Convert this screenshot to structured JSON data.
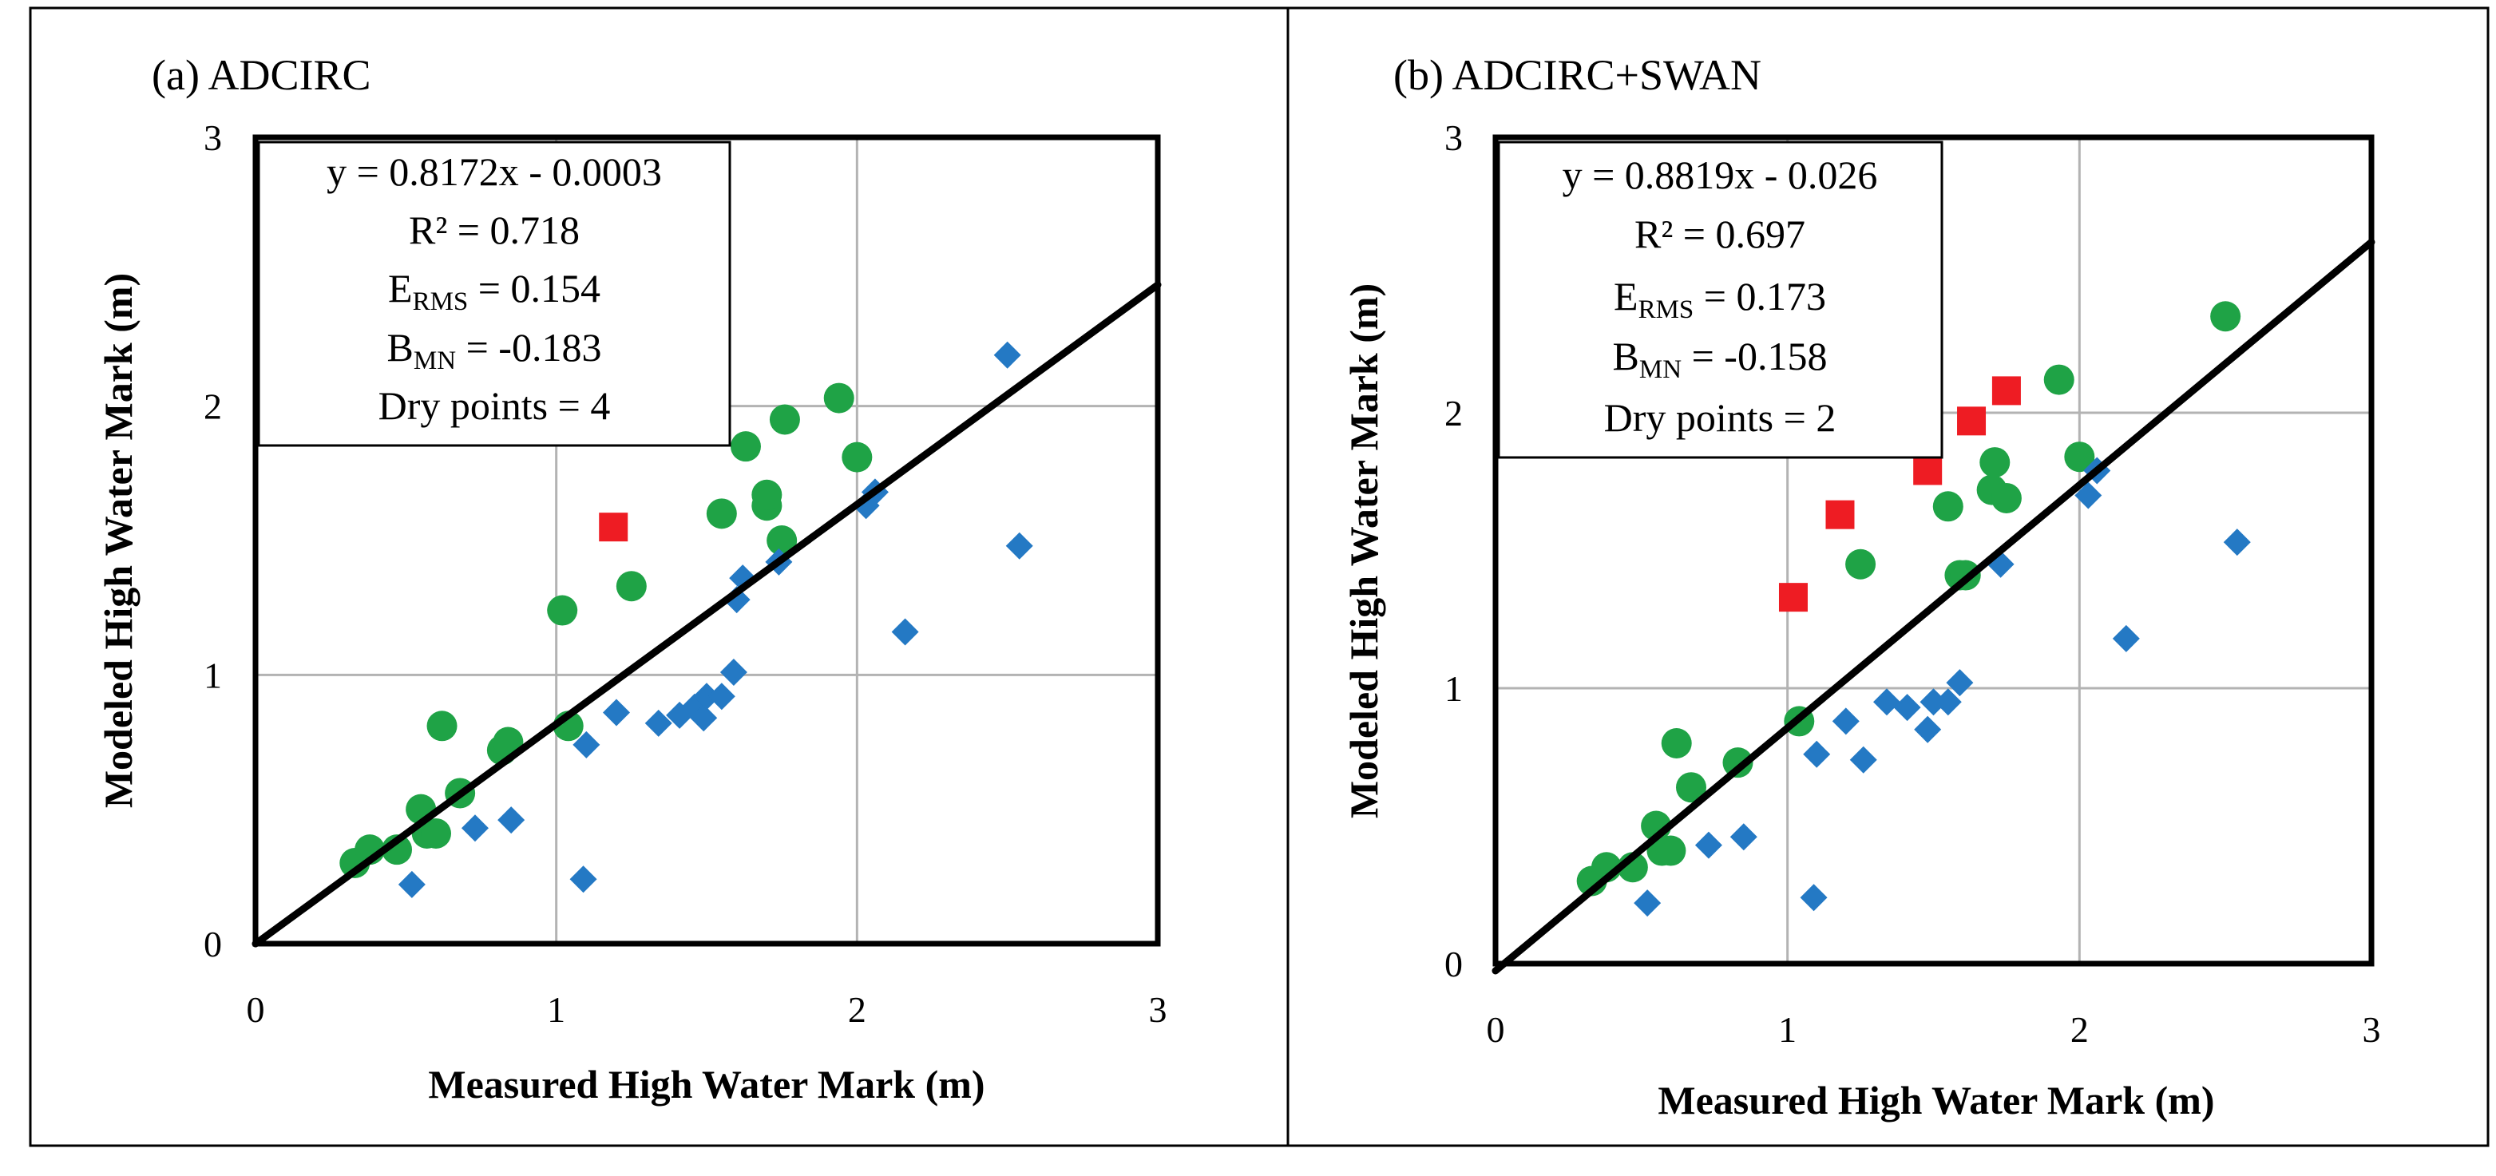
{
  "chart_data": [
    {
      "type": "scatter",
      "panel_label": "(a) ADCIRC",
      "xlabel": "Measured High Water Mark (m)",
      "ylabel": "Modeled High Water Mark (m)",
      "xlim": [
        0,
        3
      ],
      "ylim": [
        0,
        3
      ],
      "xticks": [
        "0",
        "1",
        "2",
        "3"
      ],
      "yticks": [
        "0",
        "1",
        "2",
        "3"
      ],
      "grid": true,
      "fit_line": {
        "slope": 0.8172,
        "intercept": -0.0003
      },
      "stats": {
        "equation": "y = 0.8172x - 0.0003",
        "r2": "R² =  0.718",
        "erms_main": "E",
        "erms_sub": "RMS",
        "erms_value": " = 0.154",
        "bmn_main": "B",
        "bmn_sub": "MN",
        "bmn_value": " = -0.183",
        "dry": "Dry points = 4"
      },
      "series": [
        {
          "name": "green circles",
          "marker": "circle",
          "color": "#1fa346",
          "points": [
            [
              0.33,
              0.3
            ],
            [
              0.38,
              0.35
            ],
            [
              0.47,
              0.35
            ],
            [
              0.55,
              0.5
            ],
            [
              0.57,
              0.41
            ],
            [
              0.6,
              0.41
            ],
            [
              0.62,
              0.81
            ],
            [
              0.68,
              0.56
            ],
            [
              0.82,
              0.72
            ],
            [
              0.84,
              0.75
            ],
            [
              1.02,
              1.24
            ],
            [
              1.04,
              0.81
            ],
            [
              1.25,
              1.33
            ],
            [
              1.55,
              1.6
            ],
            [
              1.63,
              1.85
            ],
            [
              1.7,
              1.63
            ],
            [
              1.7,
              1.67
            ],
            [
              1.75,
              1.5
            ],
            [
              1.76,
              1.95
            ],
            [
              1.94,
              2.03
            ],
            [
              2.0,
              1.81
            ]
          ]
        },
        {
          "name": "blue diamonds",
          "marker": "diamond",
          "color": "#2479c4",
          "points": [
            [
              0.52,
              0.22
            ],
            [
              0.73,
              0.43
            ],
            [
              0.85,
              0.46
            ],
            [
              1.09,
              0.24
            ],
            [
              1.1,
              0.74
            ],
            [
              1.2,
              0.86
            ],
            [
              1.34,
              0.82
            ],
            [
              1.41,
              0.85
            ],
            [
              1.46,
              0.88
            ],
            [
              1.49,
              0.84
            ],
            [
              1.5,
              0.92
            ],
            [
              1.55,
              0.92
            ],
            [
              1.59,
              1.01
            ],
            [
              1.6,
              1.28
            ],
            [
              1.62,
              1.36
            ],
            [
              1.74,
              1.42
            ],
            [
              2.03,
              1.63
            ],
            [
              2.06,
              1.68
            ],
            [
              2.16,
              1.16
            ],
            [
              2.5,
              2.19
            ],
            [
              2.54,
              1.48
            ]
          ]
        },
        {
          "name": "red squares",
          "marker": "square",
          "color": "#ee1c23",
          "points": [
            [
              1.19,
              1.55
            ]
          ]
        }
      ]
    },
    {
      "type": "scatter",
      "panel_label": "(b) ADCIRC+SWAN",
      "xlabel": "Measured High Water Mark (m)",
      "ylabel": "Modeled High Water Mark (m)",
      "xlim": [
        0,
        3
      ],
      "ylim": [
        0,
        3
      ],
      "xticks": [
        "0",
        "1",
        "2",
        "3"
      ],
      "yticks": [
        "0",
        "1",
        "2",
        "3"
      ],
      "grid": true,
      "fit_line": {
        "slope": 0.8819,
        "intercept": -0.026
      },
      "stats": {
        "equation": "y = 0.8819x - 0.026",
        "r2": "R² = 0.697",
        "erms_main": "E",
        "erms_sub": "RMS",
        "erms_value": " = 0.173",
        "bmn_main": "B",
        "bmn_sub": "MN",
        "bmn_value": " = -0.158",
        "dry": "Dry points = 2"
      },
      "series": [
        {
          "name": "green circles",
          "marker": "circle",
          "color": "#1fa346",
          "points": [
            [
              0.33,
              0.3
            ],
            [
              0.38,
              0.35
            ],
            [
              0.47,
              0.35
            ],
            [
              0.55,
              0.5
            ],
            [
              0.57,
              0.41
            ],
            [
              0.6,
              0.41
            ],
            [
              0.62,
              0.8
            ],
            [
              0.67,
              0.64
            ],
            [
              0.83,
              0.73
            ],
            [
              1.04,
              0.88
            ],
            [
              1.25,
              1.45
            ],
            [
              1.55,
              1.66
            ],
            [
              1.59,
              1.41
            ],
            [
              1.61,
              1.41
            ],
            [
              1.7,
              1.72
            ],
            [
              1.71,
              1.82
            ],
            [
              1.75,
              1.69
            ],
            [
              1.93,
              2.12
            ],
            [
              2.0,
              1.84
            ],
            [
              2.5,
              2.35
            ]
          ]
        },
        {
          "name": "blue diamonds",
          "marker": "diamond",
          "color": "#2479c4",
          "points": [
            [
              0.52,
              0.22
            ],
            [
              0.73,
              0.43
            ],
            [
              0.85,
              0.46
            ],
            [
              1.09,
              0.24
            ],
            [
              1.1,
              0.76
            ],
            [
              1.2,
              0.88
            ],
            [
              1.26,
              0.74
            ],
            [
              1.34,
              0.95
            ],
            [
              1.41,
              0.93
            ],
            [
              1.48,
              0.85
            ],
            [
              1.5,
              0.95
            ],
            [
              1.55,
              0.95
            ],
            [
              1.59,
              1.02
            ],
            [
              1.73,
              1.45
            ],
            [
              2.03,
              1.7
            ],
            [
              2.06,
              1.79
            ],
            [
              2.16,
              1.18
            ],
            [
              2.54,
              1.53
            ]
          ]
        },
        {
          "name": "red squares",
          "marker": "square",
          "color": "#ee1c23",
          "points": [
            [
              1.02,
              1.33
            ],
            [
              1.18,
              1.63
            ],
            [
              1.48,
              1.79
            ],
            [
              1.63,
              1.97
            ],
            [
              1.75,
              2.08
            ]
          ]
        }
      ]
    }
  ]
}
